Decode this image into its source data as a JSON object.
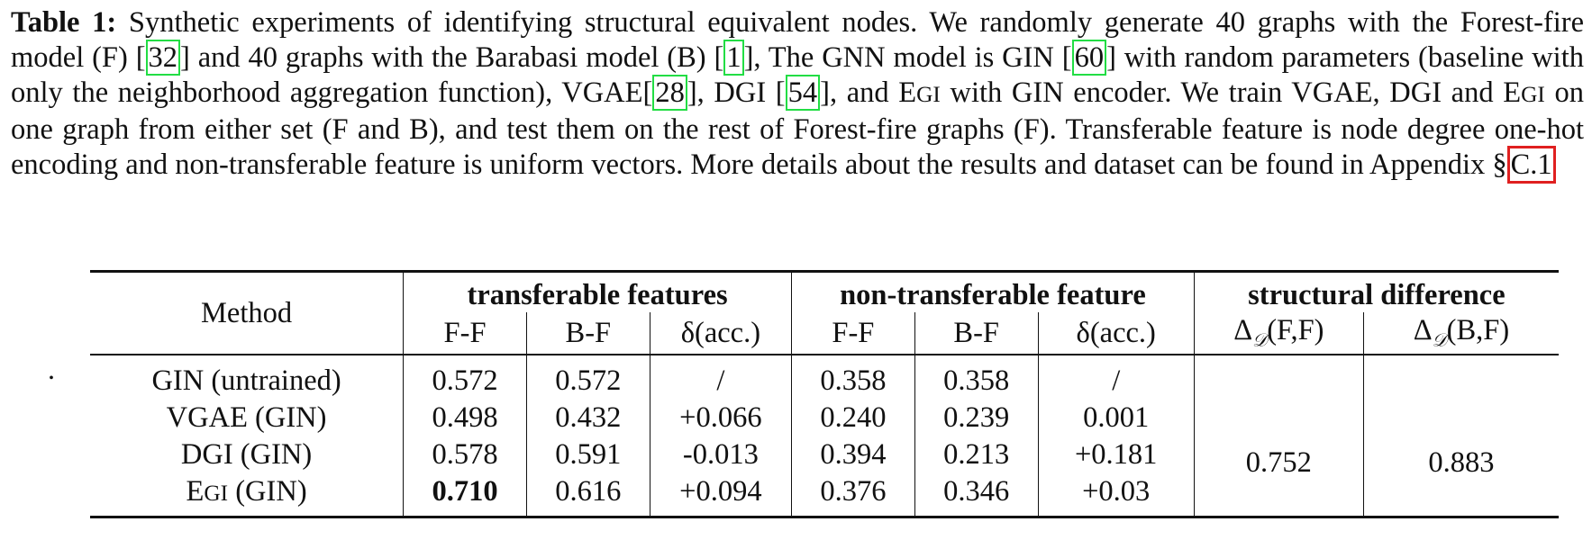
{
  "caption": {
    "label": "Table 1:",
    "parts": [
      " Synthetic experiments of identifying structural equivalent nodes. We randomly generate 40 graphs with the Forest-fire model (F) [",
      "32",
      "] and 40 graphs with the Barabasi model (B) [",
      "1",
      "], The GNN model is GIN [",
      "60",
      "] with random parameters (baseline with only the neighborhood aggregation function), VGAE[",
      "28",
      "], DGI [",
      "54",
      "], and E",
      "GI",
      " with GIN encoder. We train VGAE, DGI and E",
      "GI",
      " on one graph from either set (F and B), and test them on the rest of Forest-fire graphs (F). Transferable feature is node degree one-hot encoding and non-transferable feature is uniform vectors. More details about the results and dataset can be found in Appendix §",
      "C.1"
    ]
  },
  "table": {
    "method_header": "Method",
    "groups": [
      "transferable features",
      "non-transferable feature",
      "structural difference"
    ],
    "subheaders": [
      "F-F",
      "B-F",
      "δ(acc.)",
      "F-F",
      "B-F",
      "δ(acc.)",
      "ΔD(F,F)",
      "ΔD(B,F)"
    ],
    "delta_sym": "Δ",
    "delta_sub": "𝒟",
    "delta_ff": "(F,F)",
    "delta_bf": "(B,F)",
    "rows": [
      {
        "method": "GIN (untrained)",
        "method_pre": "",
        "method_sc": "",
        "method_post": "",
        "cells": [
          "0.572",
          "0.572",
          "/",
          "0.358",
          "0.358",
          "/"
        ]
      },
      {
        "method": "VGAE (GIN)",
        "method_pre": "",
        "method_sc": "",
        "method_post": "",
        "cells": [
          "0.498",
          "0.432",
          "+0.066",
          "0.240",
          "0.239",
          "0.001"
        ]
      },
      {
        "method": "DGI (GIN)",
        "method_pre": "",
        "method_sc": "",
        "method_post": "",
        "cells": [
          "0.578",
          "0.591",
          "-0.013",
          "0.394",
          "0.213",
          "+0.181"
        ]
      },
      {
        "method": "",
        "method_pre": "E",
        "method_sc": "GI",
        "method_post": " (GIN)",
        "cells": [
          "0.710",
          "0.616",
          "+0.094",
          "0.376",
          "0.346",
          "+0.03"
        ]
      }
    ],
    "structural": {
      "ff": "0.752",
      "bf": "0.883"
    },
    "stray_dot": "."
  }
}
